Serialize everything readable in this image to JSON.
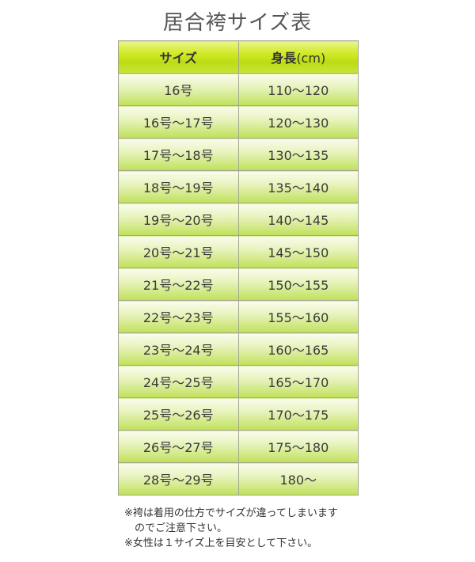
{
  "title": "居合袴サイズ表",
  "table": {
    "headers": {
      "size": "サイズ",
      "height": "身長",
      "height_unit": "(cm)"
    },
    "rows": [
      {
        "size": "16号",
        "height": "110～120"
      },
      {
        "size": "16号～17号",
        "height": "120～130"
      },
      {
        "size": "17号～18号",
        "height": "130～135"
      },
      {
        "size": "18号～19号",
        "height": "135～140"
      },
      {
        "size": "19号～20号",
        "height": "140～145"
      },
      {
        "size": "20号～21号",
        "height": "145～150"
      },
      {
        "size": "21号～22号",
        "height": "150～155"
      },
      {
        "size": "22号～23号",
        "height": "155～160"
      },
      {
        "size": "23号～24号",
        "height": "160～165"
      },
      {
        "size": "24号～25号",
        "height": "165～170"
      },
      {
        "size": "25号～26号",
        "height": "170～175"
      },
      {
        "size": "26号～27号",
        "height": "175～180"
      },
      {
        "size": "28号～29号",
        "height": "180～"
      }
    ]
  },
  "notes": {
    "line1": "※袴は着用の仕方でサイズが違ってしまいます",
    "line1_cont": "のでご注意下さい。",
    "line2": "※女性は１サイズ上を目安として下さい。"
  },
  "colors": {
    "header": "#c9e42a",
    "cell": "#d6ec90",
    "border": "#a3a58e"
  }
}
